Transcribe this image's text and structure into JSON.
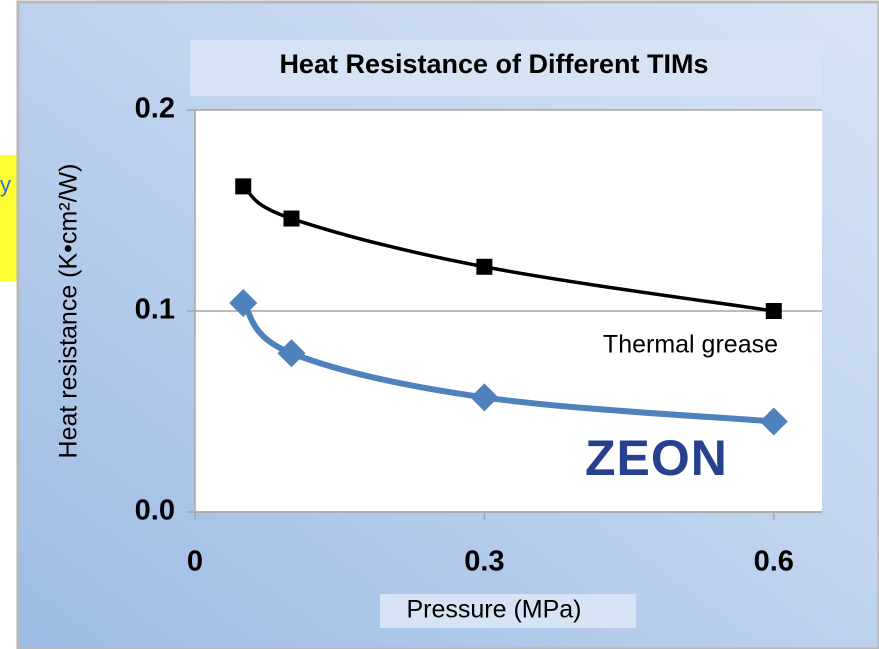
{
  "chart_data": {
    "type": "line",
    "title": "Heat Resistance of Different TIMs",
    "x_label": "Pressure (MPa)",
    "y_label": "Heat resistance (K•cm²/W)",
    "annotations": [
      "y"
    ],
    "x": [
      0.05,
      0.1,
      0.3,
      0.6
    ],
    "series": [
      {
        "name": "Thermal grease",
        "color": "#000000",
        "marker": "square",
        "values": [
          0.162,
          0.146,
          0.122,
          0.1
        ]
      },
      {
        "name": "ZEON",
        "color": "#4f81bd",
        "marker": "diamond",
        "values": [
          0.104,
          0.079,
          0.057,
          0.045
        ]
      }
    ],
    "xlim": [
      0,
      0.65
    ],
    "xticks": [
      0,
      0.3,
      0.6
    ],
    "ylim": [
      0,
      0.2
    ],
    "yticks": [
      {
        "value": 0,
        "label": "0.0"
      },
      0.1,
      0.2
    ],
    "grid": true
  }
}
